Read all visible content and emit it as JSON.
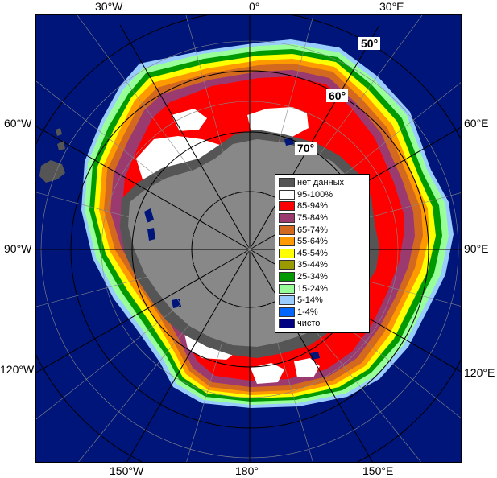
{
  "map": {
    "longitude_labels": {
      "top": [
        "30°W",
        "0°",
        "30°E"
      ],
      "left": [
        "60°W",
        "90°W",
        "120°W"
      ],
      "right": [
        "60°E",
        "90°E",
        "120°E"
      ],
      "bottom": [
        "150°W",
        "180°",
        "150°E"
      ]
    },
    "latitude_labels": [
      "50°",
      "60°",
      "70°"
    ],
    "colors": {
      "ocean": "#00157a",
      "continent": "#888888",
      "no_data": "#555555"
    }
  },
  "legend": {
    "items": [
      {
        "label": "нет данных",
        "color": "#555555"
      },
      {
        "label": "95-100%",
        "color": "#ffffff"
      },
      {
        "label": "85-94%",
        "color": "#ff0000"
      },
      {
        "label": "75-84%",
        "color": "#9b3a6e"
      },
      {
        "label": "65-74%",
        "color": "#d2691e"
      },
      {
        "label": "55-64%",
        "color": "#ff9900"
      },
      {
        "label": "45-54%",
        "color": "#ffff00"
      },
      {
        "label": "35-44%",
        "color": "#999900"
      },
      {
        "label": "25-34%",
        "color": "#009900"
      },
      {
        "label": "15-24%",
        "color": "#99ff99"
      },
      {
        "label": "5-14%",
        "color": "#99ccff"
      },
      {
        "label": "1-4%",
        "color": "#0066ff"
      },
      {
        "label": "чисто",
        "color": "#000080"
      }
    ]
  }
}
